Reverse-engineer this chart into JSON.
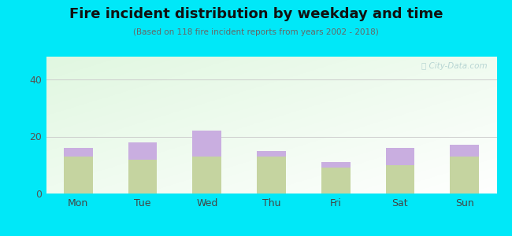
{
  "days": [
    "Mon",
    "Tue",
    "Wed",
    "Thu",
    "Fri",
    "Sat",
    "Sun"
  ],
  "pm_values": [
    13,
    12,
    13,
    13,
    9,
    10,
    13
  ],
  "am_values": [
    3,
    6,
    9,
    2,
    2,
    6,
    4
  ],
  "am_color": "#c9aee0",
  "pm_color": "#c5d4a0",
  "title": "Fire incident distribution by weekday and time",
  "subtitle": "(Based on 118 fire incident reports from years 2002 - 2018)",
  "ylim": [
    0,
    48
  ],
  "yticks": [
    0,
    20,
    40
  ],
  "bar_width": 0.45,
  "bg_outer": "#00e8f8",
  "grid_color": "#cccccc",
  "watermark": "Ⓢ City-Data.com"
}
